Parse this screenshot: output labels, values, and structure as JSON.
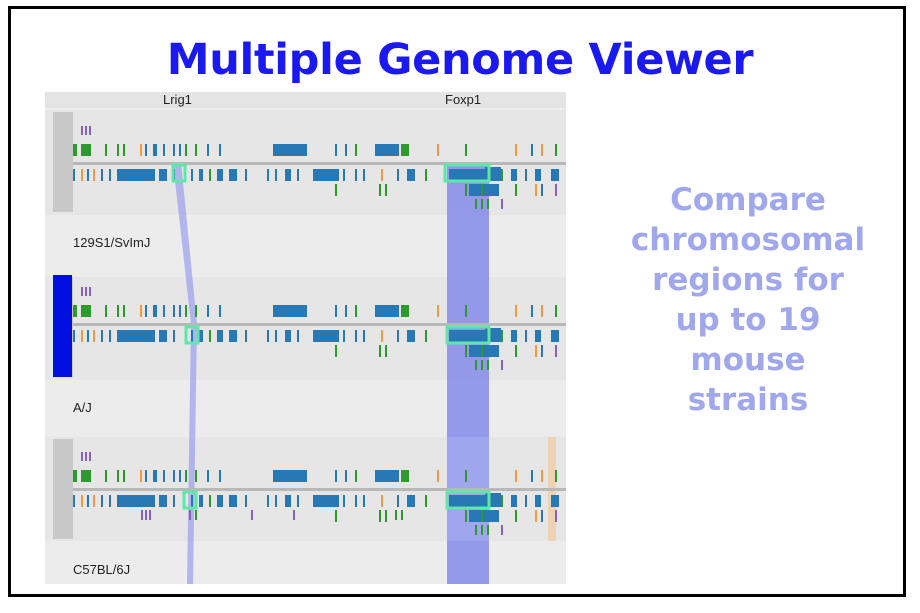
{
  "title": "Multiple Genome Viewer",
  "side_text": [
    "Compare",
    "chromosomal",
    "regions for",
    "up to 19",
    "mouse",
    "strains"
  ],
  "genes": [
    "Lrig1",
    "Foxp1"
  ],
  "strains": [
    "129S1/SvImJ",
    "A/J",
    "C57BL/6J"
  ],
  "colors": {
    "title": "#1a1af0",
    "side_text": "#a0a7ea",
    "blue_feature": "#2878b5",
    "green_feature": "#2e9a2e",
    "orange_feature": "#f39a3a",
    "purple_feature": "#8a5fc4",
    "highlight": "#5ee8a8",
    "selection_band": "#6f78e8",
    "selected_marker": "#0010e0"
  }
}
